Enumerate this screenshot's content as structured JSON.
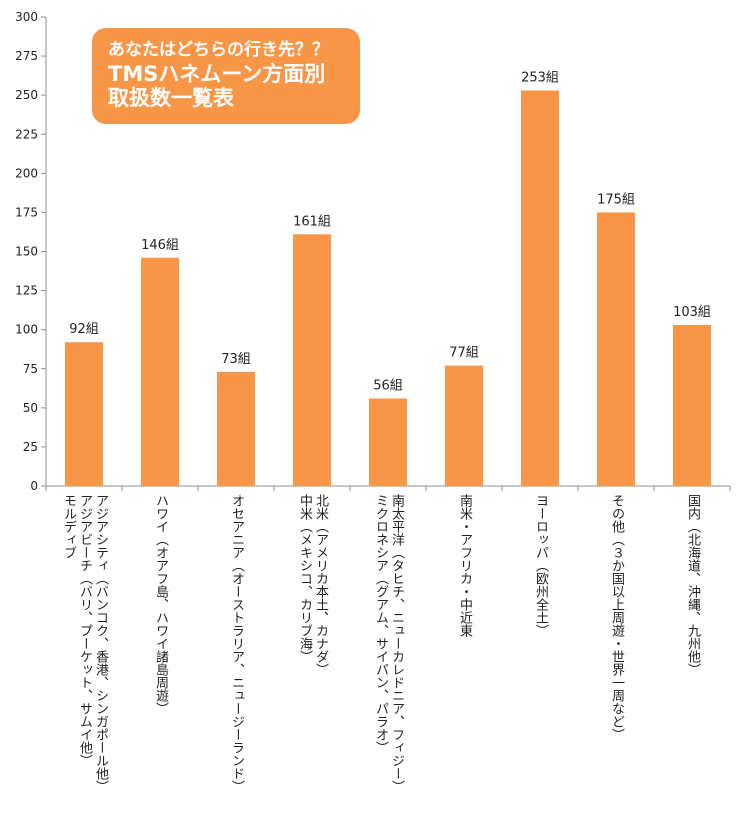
{
  "title_box": {
    "line1": "あなたはどちらの行き先？？",
    "line2": "TMSハネムーン方面別",
    "line3": "取扱数一覧表"
  },
  "colors": {
    "bar": "#f79646",
    "axis": "#8c8c8c",
    "grid": "#d0d0d0"
  },
  "chart_data": {
    "type": "bar",
    "categories": [
      "アジアシティ（バンコク、香港、シンガポール他）\nアジアビーチ（バリ、プーケット、サムイ他）\nモルディブ",
      "ハワイ（オアフ島、ハワイ諸島周遊）",
      "オセアニア（オーストラリア、ニュージーランド）",
      "北米（アメリカ本土、カナダ）\n中米（メキシコ、カリブ海）",
      "南太平洋（タヒチ、ニューカレドニア、フィジー）\nミクロネシア（グアム、サイパン、パラオ）",
      "南米・アフリカ・中近東",
      "ヨーロッパ（欧州全土）",
      "その他（３か国以上周遊・世界一周など）",
      "国内（北海道、沖縄、九州他）"
    ],
    "values": [
      92,
      146,
      73,
      161,
      56,
      77,
      253,
      175,
      103
    ],
    "data_labels": [
      "92組",
      "146組",
      "73組",
      "161組",
      "56組",
      "77組",
      "253組",
      "175組",
      "103組"
    ],
    "y_ticks": [
      "0",
      "25",
      "50",
      "75",
      "100",
      "125",
      "150",
      "175",
      "200",
      "225",
      "250",
      "275",
      "300"
    ],
    "ylim": [
      0,
      300
    ],
    "grid": false,
    "legend": "none",
    "title": "あなたはどちらの行き先？？ TMSハネムーン方面別 取扱数一覧表",
    "xlabel": "",
    "ylabel": ""
  }
}
